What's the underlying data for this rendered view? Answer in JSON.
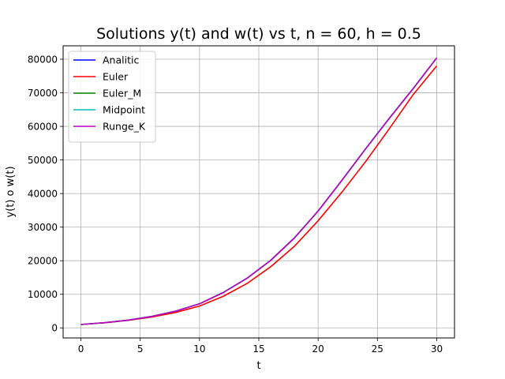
{
  "chart_data": {
    "type": "line",
    "title": "Solutions y(t) and w(t) vs t, n = 60, h = 0.5",
    "xlabel": "t",
    "ylabel": "y(t) o w(t)",
    "xlim": [
      -1.5,
      31.5
    ],
    "ylim": [
      -3000,
      84000
    ],
    "xticks": [
      0,
      5,
      10,
      15,
      20,
      25,
      30
    ],
    "yticks": [
      0,
      10000,
      20000,
      30000,
      40000,
      50000,
      60000,
      70000,
      80000
    ],
    "grid": true,
    "legend_position": "top-left",
    "x": [
      0,
      2,
      4,
      6,
      8,
      10,
      12,
      14,
      16,
      18,
      20,
      22,
      24,
      26,
      28,
      30
    ],
    "series": [
      {
        "name": "Analitic",
        "color": "#0000ff",
        "values": [
          1000,
          1550,
          2310,
          3430,
          5000,
          7160,
          10520,
          14760,
          20100,
          26770,
          34800,
          43900,
          53300,
          62400,
          71200,
          80400
        ]
      },
      {
        "name": "Euler",
        "color": "#ff0000",
        "values": [
          1000,
          1520,
          2230,
          3250,
          4600,
          6500,
          9400,
          13200,
          18200,
          24300,
          31900,
          40400,
          49500,
          59300,
          69400,
          78000
        ]
      },
      {
        "name": "Euler_M",
        "color": "#008000",
        "values": [
          1000,
          1550,
          2310,
          3430,
          5000,
          7160,
          10520,
          14760,
          20100,
          26770,
          34800,
          43900,
          53300,
          62400,
          71200,
          80400
        ]
      },
      {
        "name": "Midpoint",
        "color": "#00bfbf",
        "values": [
          1000,
          1550,
          2310,
          3430,
          5000,
          7160,
          10520,
          14760,
          20100,
          26770,
          34800,
          43900,
          53300,
          62400,
          71200,
          80400
        ]
      },
      {
        "name": "Runge_K",
        "color": "#bf00bf",
        "values": [
          1000,
          1550,
          2310,
          3430,
          5000,
          7160,
          10520,
          14760,
          20100,
          26770,
          34800,
          43900,
          53300,
          62400,
          71200,
          80400
        ]
      }
    ]
  }
}
